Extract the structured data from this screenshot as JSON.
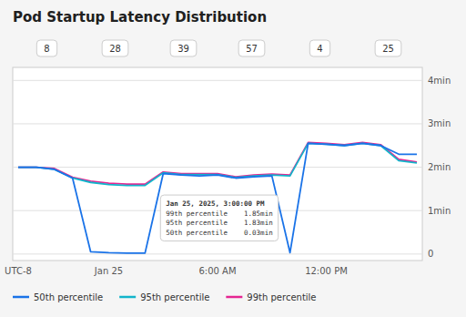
{
  "chart_data": {
    "type": "line",
    "title": "Pod Startup Latency Distribution",
    "categories": [
      "UTC-8",
      null,
      null,
      null,
      null,
      "Jan 25",
      null,
      null,
      null,
      null,
      null,
      "6:00 AM",
      null,
      null,
      null,
      null,
      null,
      "12:00 PM",
      null,
      null,
      null,
      null,
      null
    ],
    "series": [
      {
        "name": "50th percentile",
        "color": "#1a73e8",
        "values": [
          2.0,
          2.0,
          1.95,
          1.75,
          0.05,
          0.03,
          0.02,
          0.02,
          1.85,
          1.82,
          1.8,
          1.82,
          1.75,
          1.78,
          1.8,
          0.03,
          2.55,
          2.53,
          2.5,
          2.55,
          2.5,
          2.3,
          2.3
        ]
      },
      {
        "name": "95th percentile",
        "color": "#12b5cb",
        "values": [
          2.0,
          2.0,
          1.95,
          1.75,
          1.65,
          1.6,
          1.58,
          1.58,
          1.87,
          1.83,
          1.83,
          1.83,
          1.76,
          1.8,
          1.82,
          1.8,
          2.55,
          2.53,
          2.5,
          2.55,
          2.5,
          2.15,
          2.1
        ]
      },
      {
        "name": "99th percentile",
        "color": "#e52592",
        "values": [
          2.0,
          2.0,
          1.97,
          1.77,
          1.68,
          1.63,
          1.61,
          1.61,
          1.89,
          1.85,
          1.85,
          1.85,
          1.78,
          1.82,
          1.84,
          1.82,
          2.57,
          2.55,
          2.52,
          2.57,
          2.52,
          2.18,
          2.12
        ]
      }
    ],
    "ylim": [
      -0.15,
      4.3
    ],
    "yticks": [
      0,
      {
        "value": 1,
        "label": "1min"
      },
      {
        "value": 2,
        "label": "2min"
      },
      {
        "value": 3,
        "label": "3min"
      },
      {
        "value": 4,
        "label": "4min"
      }
    ],
    "grid": true,
    "legend": "lower left",
    "annotations": [
      [
        "8",
        "28",
        "39",
        "57",
        "4",
        "25"
      ],
      [
        "Jan 25, 2025, 3:00:00 PM",
        "99th percentile    1.85min",
        "95th percentile    1.83min",
        "50th percentile    0.03min"
      ]
    ]
  }
}
